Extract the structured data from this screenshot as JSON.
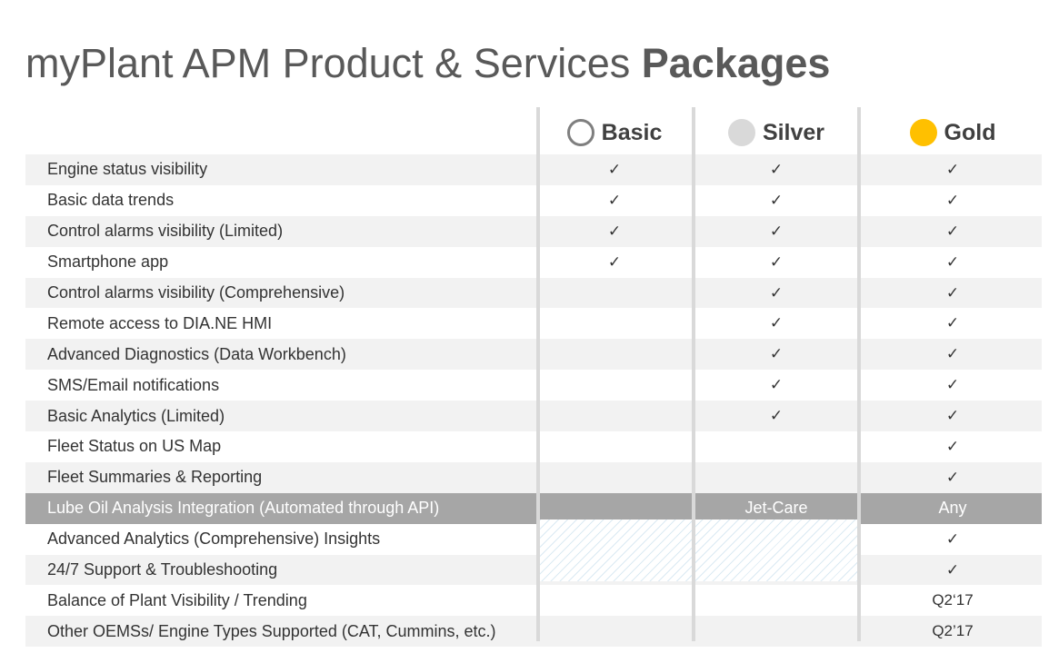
{
  "title": {
    "regular": "myPlant APM Product & Services ",
    "bold": "Packages"
  },
  "packages": [
    {
      "name": "Basic",
      "icon": "outline-circle-icon",
      "color": "#7f7f7f"
    },
    {
      "name": "Silver",
      "icon": "silver-circle-icon",
      "color": "#d9d9d9"
    },
    {
      "name": "Gold",
      "icon": "gold-circle-icon",
      "color": "#ffc000"
    }
  ],
  "rows": [
    {
      "label": "Engine status visibility",
      "cells": [
        "✓",
        "✓",
        "✓"
      ]
    },
    {
      "label": "Basic data trends",
      "cells": [
        "✓",
        "✓",
        "✓"
      ]
    },
    {
      "label": "Control alarms visibility (Limited)",
      "cells": [
        "✓",
        "✓",
        "✓"
      ]
    },
    {
      "label": "Smartphone app",
      "cells": [
        "✓",
        "✓",
        "✓"
      ]
    },
    {
      "label": "Control alarms visibility (Comprehensive)",
      "cells": [
        "",
        "✓",
        "✓"
      ]
    },
    {
      "label": "Remote access to DIA.NE HMI",
      "cells": [
        "",
        "✓",
        "✓"
      ]
    },
    {
      "label": "Advanced Diagnostics (Data Workbench)",
      "cells": [
        "",
        "✓",
        "✓"
      ]
    },
    {
      "label": "SMS/Email notifications",
      "cells": [
        "",
        "✓",
        "✓"
      ]
    },
    {
      "label": "Basic Analytics (Limited)",
      "cells": [
        "",
        "✓",
        "✓"
      ]
    },
    {
      "label": "Fleet Status on US Map",
      "cells": [
        "",
        "",
        "✓"
      ]
    },
    {
      "label": "Fleet Summaries & Reporting",
      "cells": [
        "",
        "",
        "✓"
      ]
    },
    {
      "label": "Lube Oil Analysis Integration (Automated through API)",
      "cells": [
        "",
        "Jet-Care",
        "Any"
      ]
    },
    {
      "label": "Advanced Analytics (Comprehensive) Insights",
      "cells": [
        "",
        "",
        "✓"
      ]
    },
    {
      "label": "24/7 Support & Troubleshooting",
      "cells": [
        "",
        "",
        "✓"
      ]
    },
    {
      "label": "Balance of Plant Visibility / Trending",
      "cells": [
        "",
        "",
        "Q2‘17"
      ]
    },
    {
      "label": "Other OEMSs/ Engine Types Supported (CAT, Cummins, etc.)",
      "cells": [
        "",
        "",
        "Q2’17"
      ]
    }
  ]
}
